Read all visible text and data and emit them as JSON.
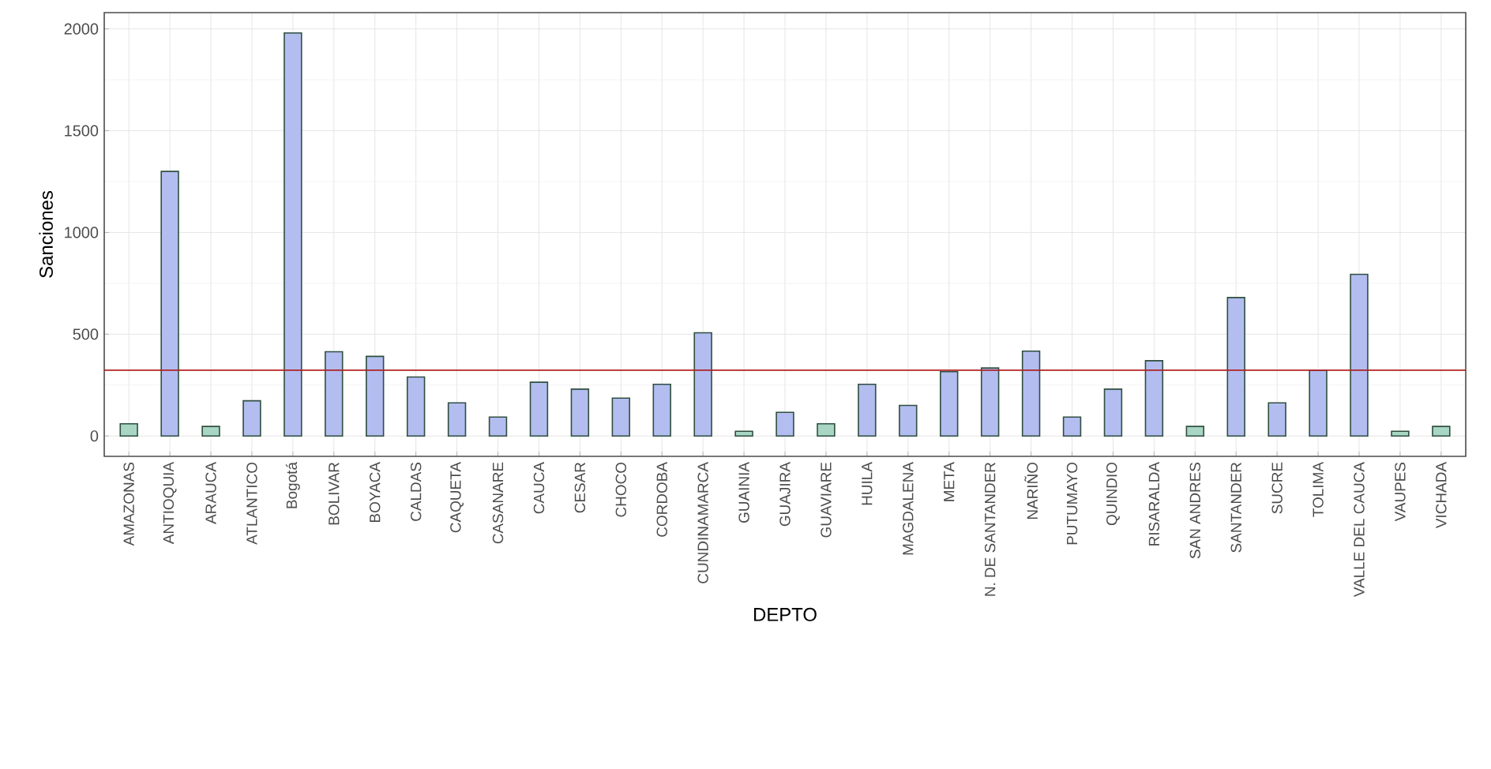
{
  "chart_data": {
    "type": "bar",
    "xlabel": "DEPTO",
    "ylabel": "Sanciones",
    "categories": [
      "AMAZONAS",
      "ANTIOQUIA",
      "ARAUCA",
      "ATLANTICO",
      "Bogotá",
      "BOLIVAR",
      "BOYACA",
      "CALDAS",
      "CAQUETA",
      "CASANARE",
      "CAUCA",
      "CESAR",
      "CHOCO",
      "CORDOBA",
      "CUNDINAMARCA",
      "GUAINIA",
      "GUAJIRA",
      "GUAVIARE",
      "HUILA",
      "MAGDALENA",
      "META",
      "N. DE SANTANDER",
      "NARIÑO",
      "PUTUMAYO",
      "QUINDIO",
      "RISARALDA",
      "SAN ANDRES",
      "SANTANDER",
      "SUCRE",
      "TOLIMA",
      "VALLE DEL CAUCA",
      "VAUPES",
      "VICHADA"
    ],
    "values": [
      60,
      1300,
      47,
      173,
      1980,
      414,
      391,
      290,
      163,
      93,
      264,
      230,
      186,
      254,
      507,
      23,
      116,
      60,
      254,
      150,
      316,
      334,
      417,
      93,
      230,
      370,
      47,
      680,
      163,
      323,
      794,
      23,
      47
    ],
    "colors": [
      "#a9d6c4",
      "#b3bdf0",
      "#a9d6c4",
      "#b3bdf0",
      "#b3bdf0",
      "#b3bdf0",
      "#b3bdf0",
      "#b3bdf0",
      "#b3bdf0",
      "#b3bdf0",
      "#b3bdf0",
      "#b3bdf0",
      "#b3bdf0",
      "#b3bdf0",
      "#b3bdf0",
      "#a9d6c4",
      "#b3bdf0",
      "#a9d6c4",
      "#b3bdf0",
      "#b3bdf0",
      "#b3bdf0",
      "#b3bdf0",
      "#b3bdf0",
      "#b3bdf0",
      "#b3bdf0",
      "#b3bdf0",
      "#a9d6c4",
      "#b3bdf0",
      "#b3bdf0",
      "#b3bdf0",
      "#b3bdf0",
      "#a9d6c4",
      "#a9d6c4"
    ],
    "ylim": [
      -100,
      2080
    ],
    "yticks": [
      0,
      500,
      1000,
      1500,
      2000
    ],
    "grid": true,
    "ref_lines": [
      {
        "axis": "y",
        "value": 323,
        "color": "#b22222"
      }
    ]
  }
}
